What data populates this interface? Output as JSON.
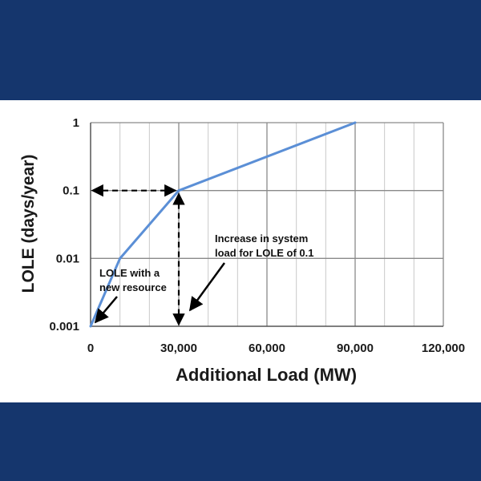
{
  "chart_data": {
    "type": "line",
    "title": "",
    "xlabel": "Additional Load (MW)",
    "ylabel": "LOLE (days/year)",
    "xlim": [
      0,
      120000
    ],
    "ylim": [
      0.001,
      1
    ],
    "y_scale": "log",
    "grid": true,
    "x_ticks": [
      0,
      30000,
      60000,
      90000,
      120000
    ],
    "x_tick_labels": [
      "0",
      "30,000",
      "60,000",
      "90,000",
      "120,000"
    ],
    "y_ticks": [
      0.001,
      0.01,
      0.1,
      1
    ],
    "y_tick_labels": [
      "0.001",
      "0.01",
      "0.1",
      "1"
    ],
    "series": [
      {
        "color": "#5b8fd6",
        "x": [
          0,
          10000,
          30000,
          90000
        ],
        "y": [
          0.001,
          0.01,
          0.1,
          1
        ]
      }
    ],
    "annotations": [
      {
        "line1": "LOLE with  a",
        "line2": "new resource"
      },
      {
        "line1": "Increase in system",
        "line2": "load for LOLE of 0.1"
      }
    ]
  }
}
